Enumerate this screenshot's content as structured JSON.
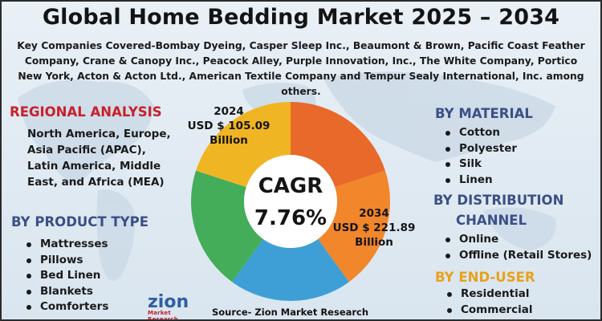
{
  "title": "Global Home Bedding Market 2025 – 2034",
  "subtitle": "Key Companies Covered-Bombay Dyeing, Casper Sleep Inc., Beaumont & Brown, Pacific Coast Feather Company, Crane & Canopy Inc., Peacock Alley, Purple Innovation, Inc., The White Company, Portico New York, Acton & Acton Ltd., American Textile Company and Tempur Sealy International, Inc. among others.",
  "regional": {
    "heading": "REGIONAL ANALYSIS",
    "text": "North America, Europe, Asia Pacific (APAC), Latin America, Middle East, and Africa (MEA)"
  },
  "product_type": {
    "heading": "BY PRODUCT TYPE",
    "items": [
      "Mattresses",
      "Pillows",
      "Bed Linen",
      "Blankets",
      "Comforters"
    ]
  },
  "material": {
    "heading": "BY MATERIAL",
    "items": [
      "Cotton",
      "Polyester",
      "Silk",
      "Linen"
    ]
  },
  "distribution": {
    "heading_line1": "BY DISTRIBUTION",
    "heading_line2": "CHANNEL",
    "items": [
      "Online",
      "Offline (Retail Stores)"
    ]
  },
  "end_user": {
    "heading": "BY END-USER",
    "items": [
      "Residential",
      "Commercial"
    ]
  },
  "center": {
    "label1": "CAGR",
    "label2": "7.76%"
  },
  "callout_2024": {
    "year": "2024",
    "value": "USD $ 105.09",
    "unit": "Billion"
  },
  "callout_2034": {
    "year": "2034",
    "value": "USD $ 221.89",
    "unit": "Billion"
  },
  "source": "Source- Zion Market Research",
  "logo": {
    "name": "zion",
    "tagline": "Market Research"
  },
  "colors": {
    "segments": [
      "#e8692a",
      "#f2862a",
      "#3e9fd6",
      "#43ad5a",
      "#f0b523"
    ],
    "red": "#c8202b",
    "blue": "#3b4f86",
    "gold": "#e8a21a"
  }
}
